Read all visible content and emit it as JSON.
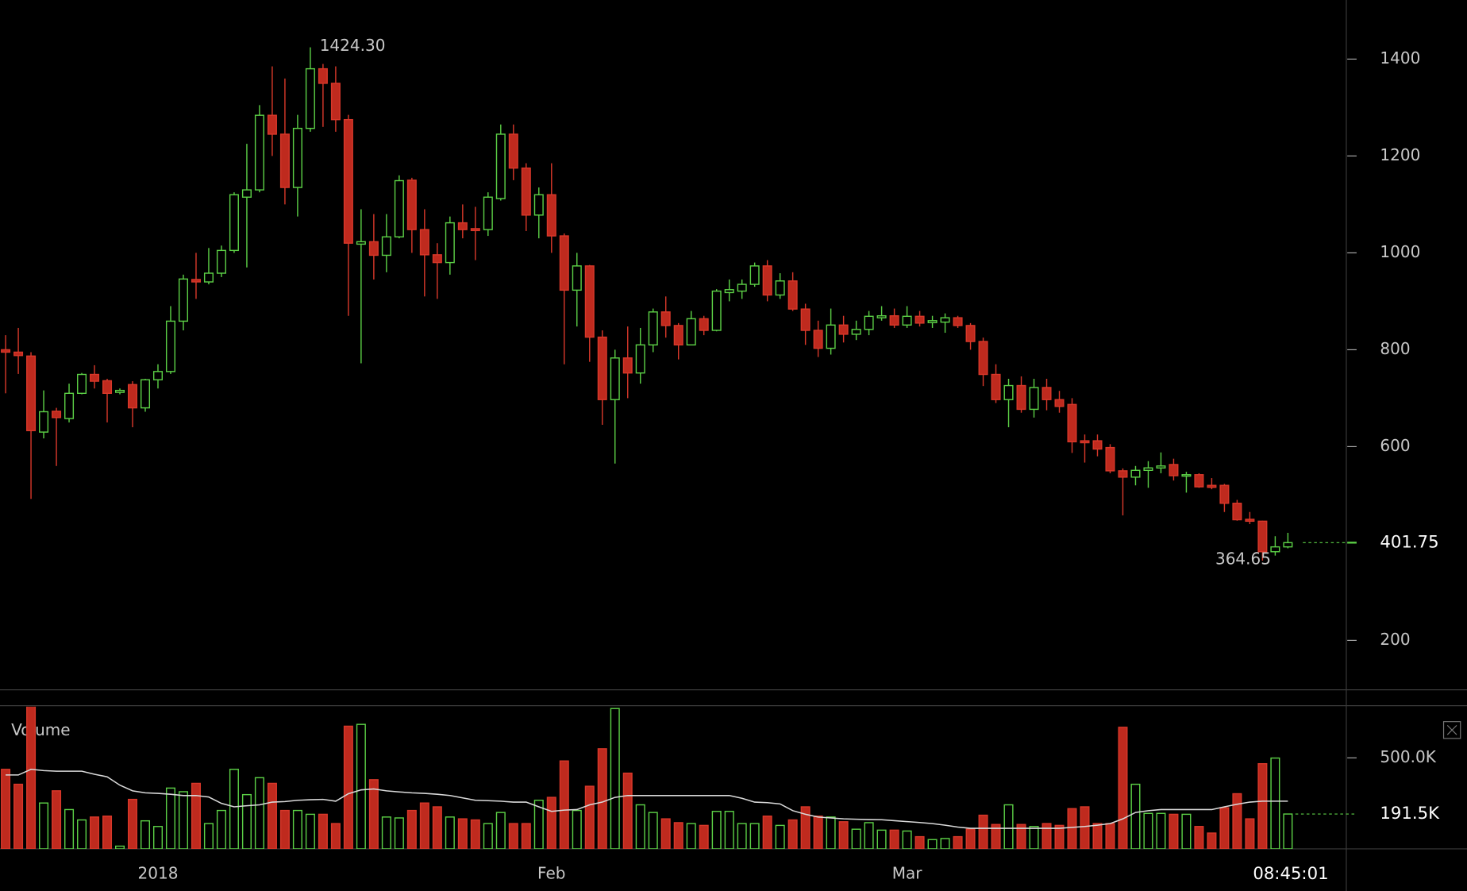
{
  "chart_data": [
    {
      "type": "candlestick",
      "categories": [
        null,
        null,
        null,
        null,
        null,
        null,
        null,
        null,
        null,
        null,
        null,
        null,
        "2018",
        null,
        null,
        null,
        null,
        null,
        null,
        null,
        null,
        null,
        null,
        null,
        null,
        null,
        null,
        null,
        null,
        null,
        null,
        null,
        null,
        null,
        null,
        null,
        null,
        null,
        null,
        null,
        null,
        null,
        null,
        "Feb",
        null,
        null,
        null,
        null,
        null,
        null,
        null,
        null,
        null,
        null,
        null,
        null,
        null,
        null,
        null,
        null,
        null,
        null,
        null,
        null,
        null,
        null,
        null,
        null,
        null,
        null,
        null,
        "Mar",
        null,
        null,
        null,
        null,
        null,
        null,
        null,
        null,
        null,
        null,
        null,
        null,
        null,
        null,
        null,
        null,
        null,
        null,
        null,
        null,
        null,
        null,
        null,
        null,
        null,
        null,
        null,
        null,
        null,
        null
      ],
      "open": [
        800,
        795,
        787,
        630,
        673,
        658,
        710,
        749,
        736,
        712,
        728,
        680,
        738,
        755,
        859,
        945,
        940,
        958,
        1005,
        1115,
        1130,
        1284,
        1245,
        1135,
        1257,
        1380,
        1350,
        1275,
        1018,
        1023,
        995,
        1033,
        1150,
        1048,
        996,
        980,
        1062,
        1050,
        1048,
        1112,
        1245,
        1175,
        1078,
        1120,
        1035,
        923,
        973,
        826,
        697,
        783,
        752,
        810,
        878,
        850,
        810,
        864,
        840,
        918,
        921,
        935,
        973,
        913,
        942,
        884,
        840,
        803,
        851,
        832,
        842,
        866,
        870,
        851,
        869,
        856,
        857,
        866,
        850,
        817,
        749,
        697,
        726,
        677,
        722,
        697,
        687,
        612,
        612,
        598,
        550,
        537,
        551,
        556,
        563,
        540,
        542,
        520,
        520,
        483,
        450,
        446,
        383,
        393
      ],
      "high": [
        830,
        845,
        795,
        716,
        680,
        730,
        752,
        768,
        740,
        720,
        735,
        740,
        770,
        890,
        955,
        1000,
        1010,
        1015,
        1125,
        1225,
        1305,
        1385,
        1360,
        1285,
        1424.3,
        1390,
        1385,
        1285,
        1090,
        1080,
        1080,
        1160,
        1155,
        1090,
        1020,
        1075,
        1100,
        1095,
        1125,
        1265,
        1265,
        1185,
        1135,
        1185,
        1040,
        1000,
        975,
        840,
        800,
        848,
        845,
        885,
        910,
        855,
        880,
        870,
        925,
        945,
        945,
        980,
        985,
        958,
        960,
        895,
        860,
        885,
        870,
        860,
        880,
        890,
        885,
        890,
        880,
        870,
        875,
        870,
        855,
        825,
        770,
        740,
        745,
        740,
        740,
        715,
        700,
        625,
        625,
        605,
        555,
        560,
        570,
        588,
        575,
        548,
        545,
        535,
        523,
        490,
        465,
        447,
        415,
        422
      ],
      "low": [
        710,
        750,
        492,
        617,
        560,
        650,
        708,
        720,
        650,
        708,
        640,
        672,
        720,
        750,
        840,
        905,
        935,
        950,
        1000,
        970,
        1125,
        1200,
        1100,
        1075,
        1250,
        1260,
        1250,
        870,
        772,
        945,
        960,
        1030,
        1000,
        910,
        905,
        955,
        1030,
        985,
        1035,
        1108,
        1150,
        1045,
        1030,
        1000,
        770,
        848,
        775,
        645,
        565,
        700,
        730,
        795,
        825,
        780,
        810,
        830,
        838,
        900,
        905,
        930,
        900,
        905,
        880,
        810,
        785,
        790,
        815,
        820,
        830,
        860,
        845,
        845,
        848,
        845,
        835,
        845,
        800,
        725,
        690,
        640,
        670,
        660,
        675,
        670,
        587,
        567,
        580,
        545,
        458,
        520,
        515,
        545,
        530,
        505,
        515,
        512,
        465,
        447,
        440,
        364.65,
        375,
        390
      ],
      "close": [
        795,
        788,
        633,
        672,
        660,
        710,
        749,
        735,
        710,
        716,
        680,
        738,
        755,
        859,
        946,
        940,
        958,
        1005,
        1120,
        1130,
        1284,
        1245,
        1135,
        1257,
        1380,
        1350,
        1275,
        1020,
        1023,
        995,
        1033,
        1149,
        1048,
        996,
        980,
        1062,
        1048,
        1046,
        1115,
        1245,
        1175,
        1078,
        1120,
        1035,
        923,
        973,
        826,
        697,
        783,
        752,
        810,
        878,
        850,
        810,
        864,
        840,
        921,
        924,
        935,
        973,
        913,
        942,
        884,
        840,
        803,
        851,
        832,
        842,
        869,
        870,
        851,
        869,
        855,
        860,
        866,
        850,
        817,
        749,
        697,
        726,
        677,
        722,
        697,
        683,
        610,
        608,
        595,
        550,
        537,
        551,
        556,
        560,
        540,
        542,
        517,
        516,
        483,
        449,
        446,
        383,
        393,
        401.75
      ],
      "up_color": "#5cd046",
      "down_color": "#bf2a1e",
      "ylim": [
        98,
        1522
      ],
      "yticks": [
        200,
        600,
        800,
        1000,
        1200,
        1400
      ],
      "current": 401.75,
      "annotations": [
        {
          "value": 1424.3,
          "label": "1424.30"
        },
        {
          "value": 364.65
        }
      ],
      "clock": "08:45:01"
    },
    {
      "type": "bar",
      "title": "Volume",
      "values": [
        437,
        355,
        790,
        252,
        319,
        216,
        159,
        175,
        180,
        15,
        272,
        154,
        123,
        334,
        314,
        360,
        139,
        211,
        437,
        298,
        391,
        360,
        211,
        211,
        190,
        190,
        139,
        674,
        684,
        380,
        175,
        170,
        211,
        252,
        231,
        175,
        165,
        159,
        139,
        200,
        139,
        139,
        267,
        283,
        483,
        211,
        344,
        550,
        771,
        416,
        242,
        200,
        165,
        144,
        139,
        129,
        206,
        206,
        139,
        139,
        180,
        129,
        159,
        231,
        180,
        175,
        149,
        108,
        144,
        103,
        103,
        98,
        67,
        51,
        57,
        67,
        108,
        185,
        134,
        242,
        134,
        123,
        139,
        129,
        221,
        231,
        139,
        139,
        668,
        355,
        195,
        195,
        190,
        190,
        123,
        87,
        226,
        303,
        165,
        468,
        499,
        191.5
      ],
      "ma_values": [
        406,
        406,
        437,
        430,
        427,
        427,
        427,
        410,
        396,
        350,
        319,
        308,
        305,
        300,
        293,
        293,
        285,
        250,
        231,
        237,
        242,
        257,
        260,
        267,
        270,
        272,
        262,
        303,
        324,
        329,
        319,
        313,
        308,
        305,
        300,
        293,
        280,
        267,
        265,
        262,
        257,
        257,
        231,
        206,
        213,
        216,
        242,
        257,
        283,
        293,
        293,
        293,
        293,
        293,
        293,
        293,
        293,
        293,
        278,
        257,
        254,
        247,
        210,
        190,
        175,
        170,
        165,
        163,
        161,
        160,
        155,
        150,
        145,
        139,
        130,
        120,
        113,
        113,
        113,
        113,
        113,
        113,
        113,
        113,
        118,
        123,
        130,
        139,
        165,
        200,
        210,
        216,
        216,
        216,
        216,
        216,
        231,
        245,
        257,
        262,
        262,
        262
      ],
      "ma_color": "#d9d9d9",
      "ylim": [
        0,
        781.5
      ],
      "yticks": [
        {
          "value": 500,
          "label": "500.0K"
        }
      ],
      "current": {
        "value": 191.5,
        "label": "191.5K"
      }
    }
  ]
}
